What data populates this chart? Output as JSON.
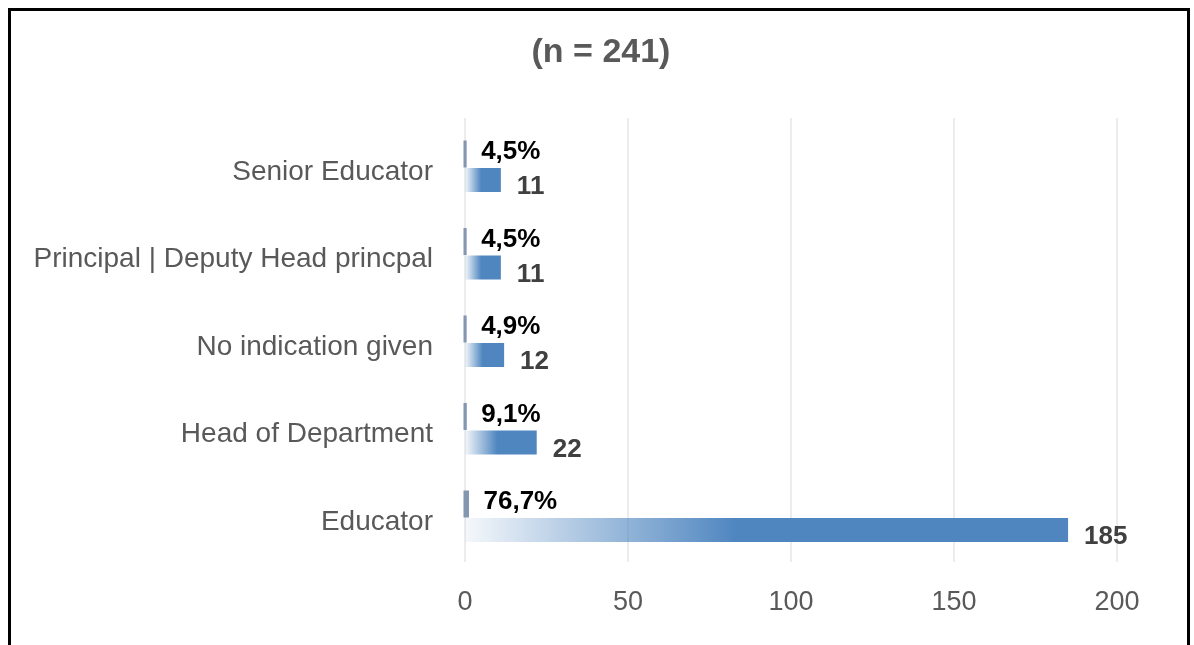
{
  "chart_data": {
    "type": "bar",
    "orientation": "horizontal",
    "title": "(n = 241)",
    "categories": [
      "Senior Educator",
      "Principal | Deputy Head princpal",
      "No indication given",
      "Head of Department",
      "Educator"
    ],
    "series": [
      {
        "color": "#8497b0",
        "values": [
          0.045,
          0.045,
          0.049,
          0.091,
          0.767
        ],
        "value_labels": [
          "4,5%",
          "4,5%",
          "4,9%",
          "9,1%",
          "76,7%"
        ]
      },
      {
        "color": "#4f86c0",
        "values": [
          11,
          11,
          12,
          22,
          185
        ],
        "value_labels": [
          "11",
          "11",
          "12",
          "22",
          "185"
        ]
      }
    ],
    "xlim": [
      0,
      200
    ],
    "xticks": [
      0,
      50,
      100,
      150,
      200
    ],
    "grid": "x"
  }
}
